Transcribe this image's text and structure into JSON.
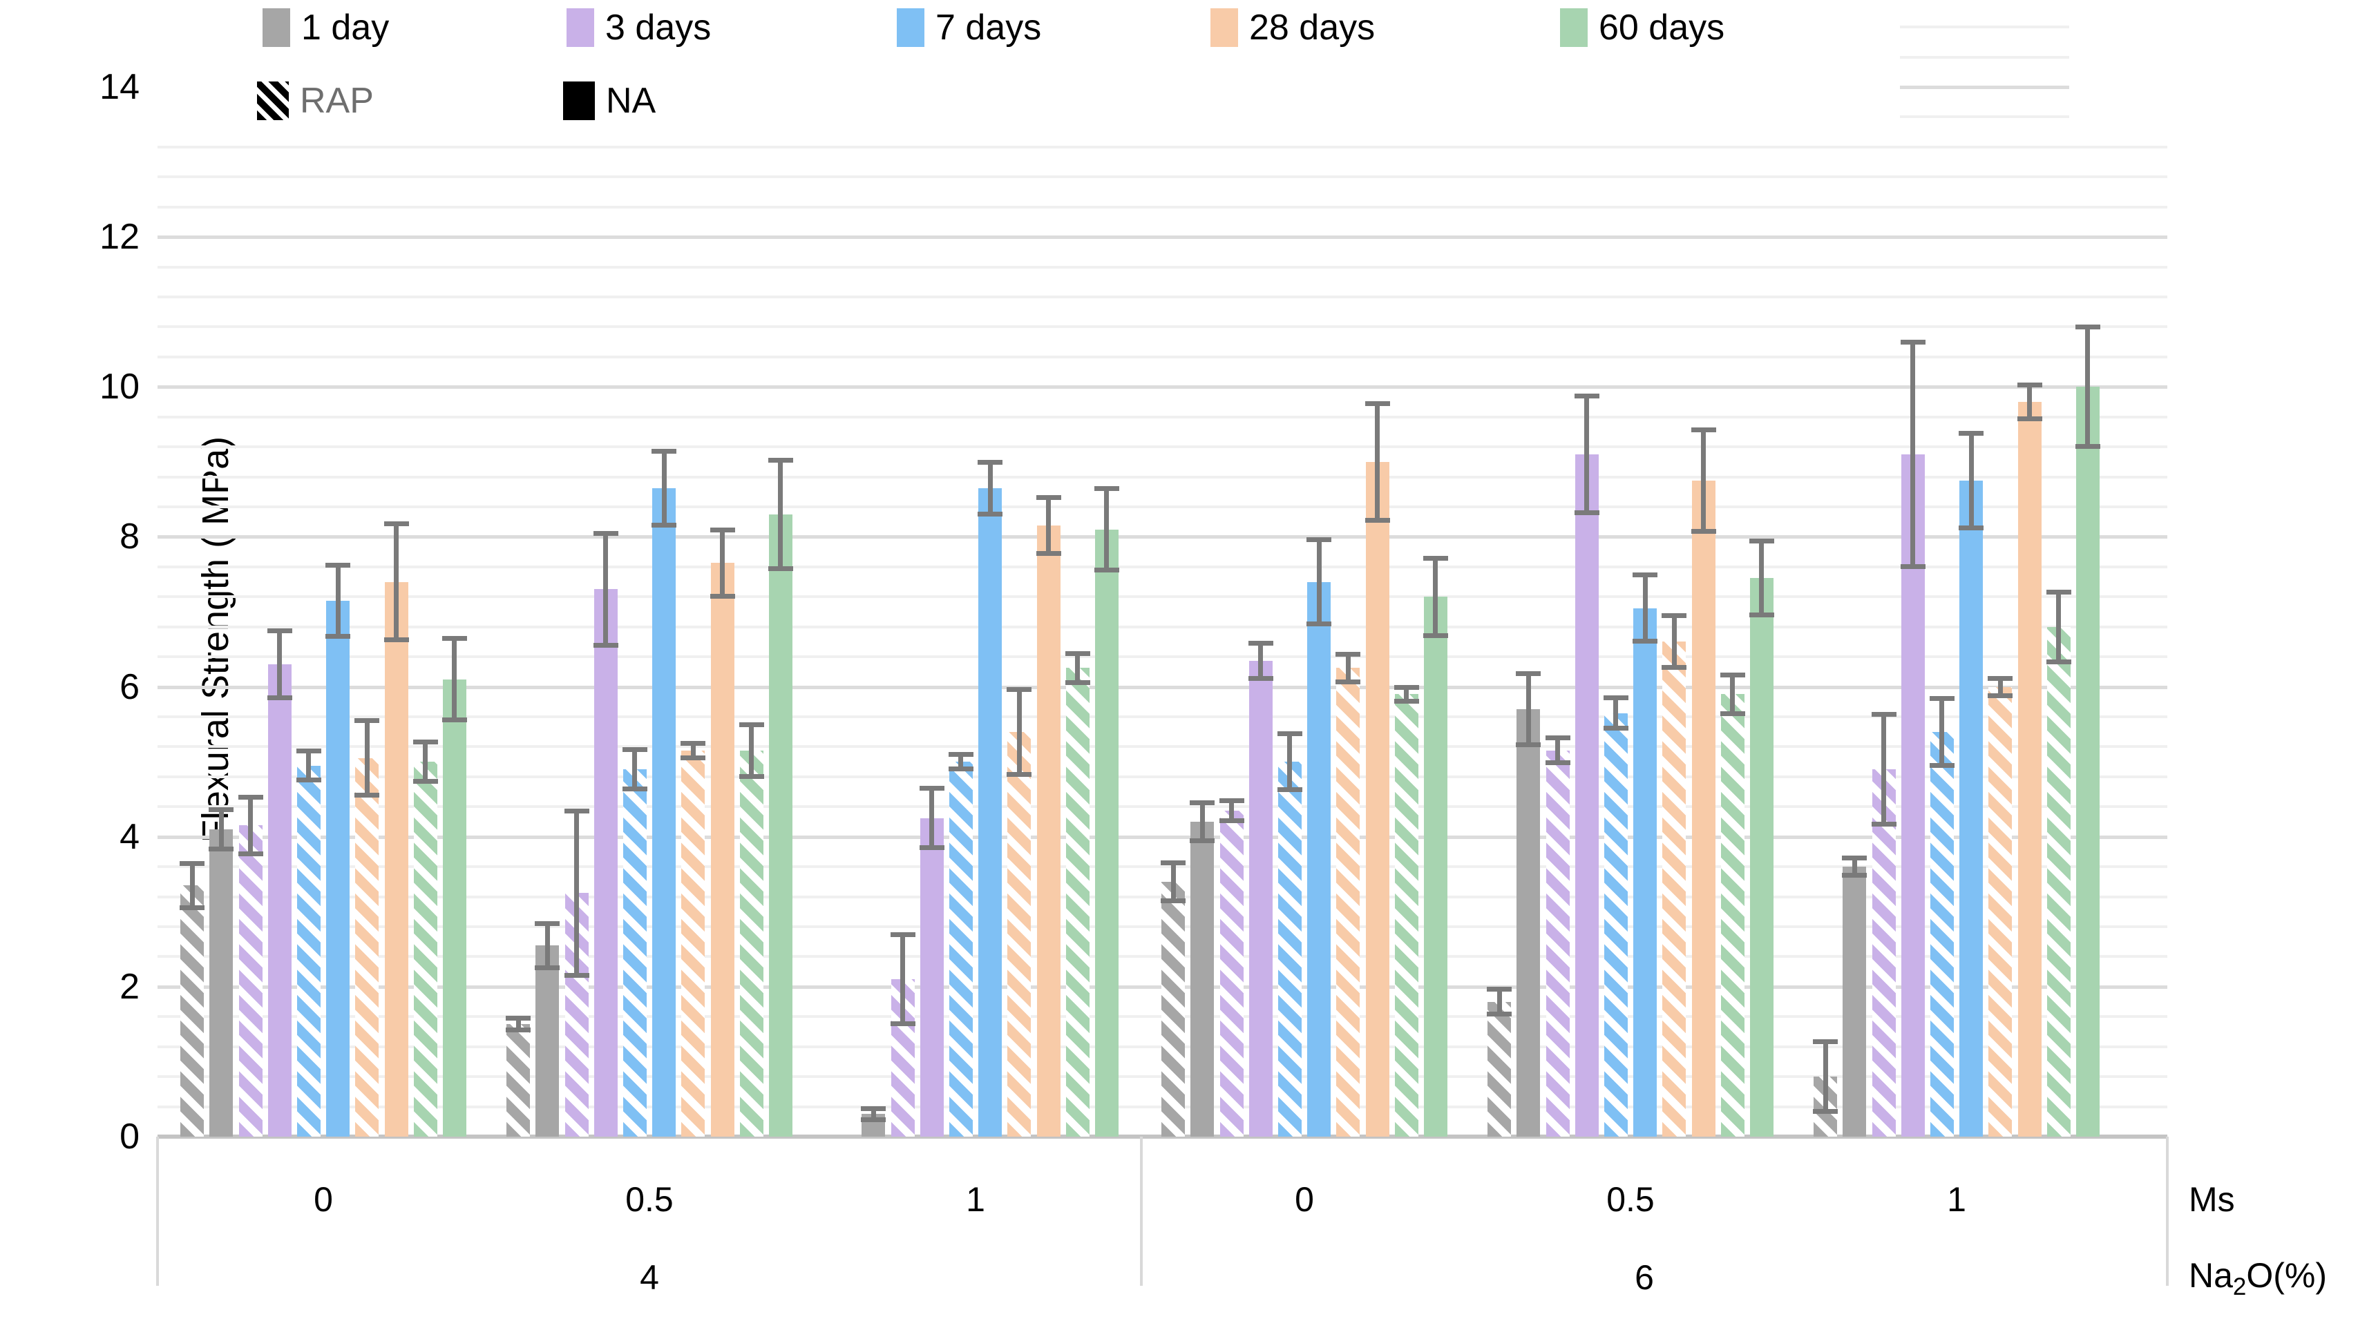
{
  "chart_data": {
    "type": "bar",
    "title": "",
    "ylabel": "Flexural Strength ( MPa)",
    "ylim": [
      0,
      14
    ],
    "y_ticks": [
      0,
      2,
      4,
      6,
      8,
      10,
      12,
      14
    ],
    "y_major_step": 2,
    "y_minor_step": 0.4,
    "grid": "horizontal, minor+major, light gray",
    "legend_position": "top-left, two rows",
    "axis": {
      "ms_label": "Ms",
      "na2o_prefix": "Na",
      "na2o_sub": "2",
      "na2o_suffix": "O(%)"
    },
    "age_series": [
      {
        "label": "1 day",
        "color": "#A6A6A6"
      },
      {
        "label": "3 days",
        "color": "#C9B1E8"
      },
      {
        "label": "7 days",
        "color": "#7FC0F4"
      },
      {
        "label": "28 days",
        "color": "#F8CBA8"
      },
      {
        "label": "60 days",
        "color": "#A7D4B0"
      }
    ],
    "aggregate_series": [
      {
        "label": "RAP",
        "style": "hatched",
        "swatch_color": "#000000",
        "label_color": "#6e6e6e"
      },
      {
        "label": "NA",
        "style": "solid",
        "swatch_color": "#000000",
        "label_color": "#000000"
      }
    ],
    "groups": [
      {
        "na2o": "4",
        "ms": "0",
        "bars": [
          {
            "age": "1 day",
            "agg": "RAP",
            "value": 3.35,
            "err": 0.3
          },
          {
            "age": "1 day",
            "agg": "NA",
            "value": 4.1,
            "err": 0.27
          },
          {
            "age": "3 days",
            "agg": "RAP",
            "value": 4.15,
            "err": 0.38
          },
          {
            "age": "3 days",
            "agg": "NA",
            "value": 6.3,
            "err": 0.45
          },
          {
            "age": "7 days",
            "agg": "RAP",
            "value": 4.95,
            "err": 0.2
          },
          {
            "age": "7 days",
            "agg": "NA",
            "value": 7.15,
            "err": 0.48
          },
          {
            "age": "28 days",
            "agg": "RAP",
            "value": 5.05,
            "err": 0.5
          },
          {
            "age": "28 days",
            "agg": "NA",
            "value": 7.4,
            "err": 0.78
          },
          {
            "age": "60 days",
            "agg": "RAP",
            "value": 5.0,
            "err": 0.27
          },
          {
            "age": "60 days",
            "agg": "NA",
            "value": 6.1,
            "err": 0.55
          }
        ]
      },
      {
        "na2o": "4",
        "ms": "0.5",
        "bars": [
          {
            "age": "1 day",
            "agg": "RAP",
            "value": 1.5,
            "err": 0.08
          },
          {
            "age": "1 day",
            "agg": "NA",
            "value": 2.55,
            "err": 0.3
          },
          {
            "age": "3 days",
            "agg": "RAP",
            "value": 3.25,
            "err": 1.1
          },
          {
            "age": "3 days",
            "agg": "NA",
            "value": 7.3,
            "err": 0.75
          },
          {
            "age": "7 days",
            "agg": "RAP",
            "value": 4.9,
            "err": 0.27
          },
          {
            "age": "7 days",
            "agg": "NA",
            "value": 8.65,
            "err": 0.5
          },
          {
            "age": "28 days",
            "agg": "RAP",
            "value": 5.15,
            "err": 0.1
          },
          {
            "age": "28 days",
            "agg": "NA",
            "value": 7.65,
            "err": 0.45
          },
          {
            "age": "60 days",
            "agg": "RAP",
            "value": 5.15,
            "err": 0.35
          },
          {
            "age": "60 days",
            "agg": "NA",
            "value": 8.3,
            "err": 0.73
          }
        ]
      },
      {
        "na2o": "4",
        "ms": "1",
        "bars": [
          {
            "age": "1 day",
            "agg": "RAP",
            "value": null,
            "err": null
          },
          {
            "age": "1 day",
            "agg": "NA",
            "value": 0.3,
            "err": 0.08
          },
          {
            "age": "3 days",
            "agg": "RAP",
            "value": 2.1,
            "err": 0.6
          },
          {
            "age": "3 days",
            "agg": "NA",
            "value": 4.25,
            "err": 0.4
          },
          {
            "age": "7 days",
            "agg": "RAP",
            "value": 5.0,
            "err": 0.1
          },
          {
            "age": "7 days",
            "agg": "NA",
            "value": 8.65,
            "err": 0.35
          },
          {
            "age": "28 days",
            "agg": "RAP",
            "value": 5.4,
            "err": 0.57
          },
          {
            "age": "28 days",
            "agg": "NA",
            "value": 8.15,
            "err": 0.38
          },
          {
            "age": "60 days",
            "agg": "RAP",
            "value": 6.25,
            "err": 0.2
          },
          {
            "age": "60 days",
            "agg": "NA",
            "value": 8.1,
            "err": 0.55
          }
        ]
      },
      {
        "na2o": "6",
        "ms": "0",
        "bars": [
          {
            "age": "1 day",
            "agg": "RAP",
            "value": 3.4,
            "err": 0.26
          },
          {
            "age": "1 day",
            "agg": "NA",
            "value": 4.2,
            "err": 0.26
          },
          {
            "age": "3 days",
            "agg": "RAP",
            "value": 4.35,
            "err": 0.14
          },
          {
            "age": "3 days",
            "agg": "NA",
            "value": 6.35,
            "err": 0.24
          },
          {
            "age": "7 days",
            "agg": "RAP",
            "value": 5.0,
            "err": 0.38
          },
          {
            "age": "7 days",
            "agg": "NA",
            "value": 7.4,
            "err": 0.57
          },
          {
            "age": "28 days",
            "agg": "RAP",
            "value": 6.25,
            "err": 0.19
          },
          {
            "age": "28 days",
            "agg": "NA",
            "value": 9.0,
            "err": 0.78
          },
          {
            "age": "60 days",
            "agg": "RAP",
            "value": 5.9,
            "err": 0.1
          },
          {
            "age": "60 days",
            "agg": "NA",
            "value": 7.2,
            "err": 0.52
          }
        ]
      },
      {
        "na2o": "6",
        "ms": "0.5",
        "bars": [
          {
            "age": "1 day",
            "agg": "RAP",
            "value": 1.8,
            "err": 0.17
          },
          {
            "age": "1 day",
            "agg": "NA",
            "value": 5.7,
            "err": 0.48
          },
          {
            "age": "3 days",
            "agg": "RAP",
            "value": 5.15,
            "err": 0.17
          },
          {
            "age": "3 days",
            "agg": "NA",
            "value": 9.1,
            "err": 0.78
          },
          {
            "age": "7 days",
            "agg": "RAP",
            "value": 5.65,
            "err": 0.21
          },
          {
            "age": "7 days",
            "agg": "NA",
            "value": 7.05,
            "err": 0.45
          },
          {
            "age": "28 days",
            "agg": "RAP",
            "value": 6.6,
            "err": 0.35
          },
          {
            "age": "28 days",
            "agg": "NA",
            "value": 8.75,
            "err": 0.68
          },
          {
            "age": "60 days",
            "agg": "RAP",
            "value": 5.9,
            "err": 0.26
          },
          {
            "age": "60 days",
            "agg": "NA",
            "value": 7.45,
            "err": 0.5
          }
        ]
      },
      {
        "na2o": "6",
        "ms": "1",
        "bars": [
          {
            "age": "1 day",
            "agg": "RAP",
            "value": 0.8,
            "err": 0.47
          },
          {
            "age": "1 day",
            "agg": "NA",
            "value": 3.6,
            "err": 0.12
          },
          {
            "age": "3 days",
            "agg": "RAP",
            "value": 4.9,
            "err": 0.74
          },
          {
            "age": "3 days",
            "agg": "NA",
            "value": 9.1,
            "err": 1.5
          },
          {
            "age": "7 days",
            "agg": "RAP",
            "value": 5.4,
            "err": 0.45
          },
          {
            "age": "7 days",
            "agg": "NA",
            "value": 8.75,
            "err": 0.64
          },
          {
            "age": "28 days",
            "agg": "RAP",
            "value": 6.0,
            "err": 0.12
          },
          {
            "age": "28 days",
            "agg": "NA",
            "value": 9.8,
            "err": 0.23
          },
          {
            "age": "60 days",
            "agg": "RAP",
            "value": 6.8,
            "err": 0.47
          },
          {
            "age": "60 days",
            "agg": "NA",
            "value": 10.0,
            "err": 0.8
          }
        ]
      }
    ],
    "colors": {
      "gridline_minor": "#f0f0f0",
      "gridline_major": "#dcdcdc",
      "axis_line": "#c4c4c4",
      "error_bar": "#7a7a7a"
    }
  }
}
